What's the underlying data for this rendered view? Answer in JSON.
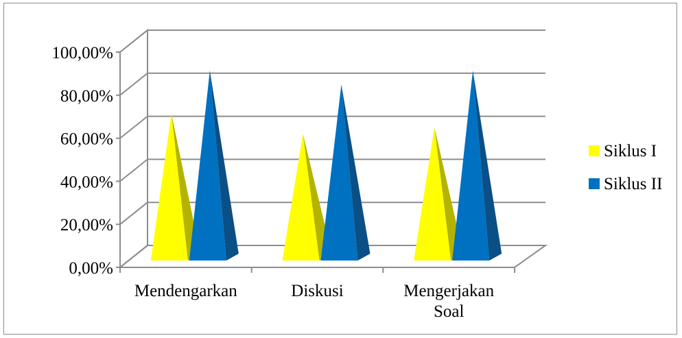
{
  "chart_data": {
    "type": "bar",
    "subtype": "3d-pyramid",
    "categories": [
      [
        "Mendengarkan"
      ],
      [
        "Diskusi"
      ],
      [
        "Mengerjakan",
        "Soal"
      ]
    ],
    "series": [
      {
        "name": "Siklus I",
        "values": [
          71.5,
          62.0,
          65.0
        ],
        "color": "#ffff00",
        "shade": "#b3b300"
      },
      {
        "name": "Siklus II",
        "values": [
          91.5,
          85.0,
          91.5
        ],
        "color": "#0070c0",
        "shade": "#0a4f86"
      }
    ],
    "y_ticks": [
      "0,00%",
      "20,00%",
      "40,00%",
      "60,00%",
      "80,00%",
      "100,00%"
    ],
    "ylim": [
      0,
      100
    ],
    "grid": true,
    "legend_position": "right"
  }
}
